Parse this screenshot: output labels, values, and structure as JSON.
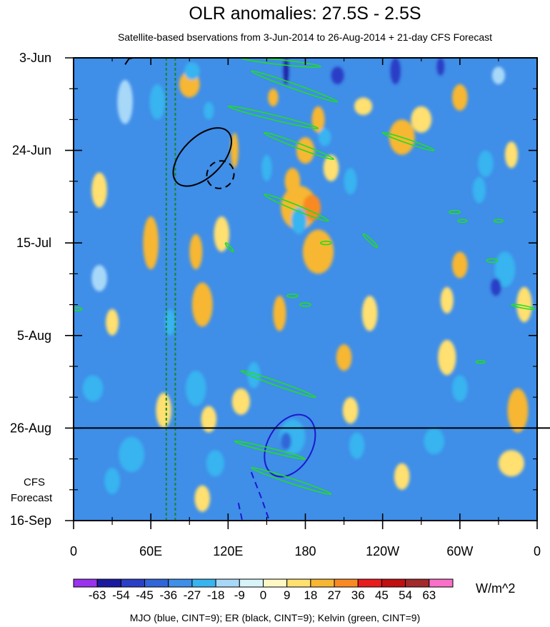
{
  "chart_data": {
    "type": "heatmap",
    "title": "OLR anomalies: 27.5S - 2.5S",
    "subtitle": "Satellite-based bservations from 3-Jun-2014 to 26-Aug-2014 + 21-day CFS Forecast",
    "xlabel": "",
    "ylabel": "",
    "x_domain": [
      0,
      360
    ],
    "x_ticks": [
      {
        "lon": 0,
        "label": "0"
      },
      {
        "lon": 60,
        "label": "60E"
      },
      {
        "lon": 120,
        "label": "120E"
      },
      {
        "lon": 180,
        "label": "180"
      },
      {
        "lon": 240,
        "label": "120W"
      },
      {
        "lon": 300,
        "label": "60W"
      },
      {
        "lon": 360,
        "label": "0"
      }
    ],
    "y_domain_days": [
      0,
      105
    ],
    "y_ticks": [
      {
        "day": 0,
        "label": "3-Jun"
      },
      {
        "day": 21,
        "label": "24-Jun"
      },
      {
        "day": 42,
        "label": "15-Jul"
      },
      {
        "day": 63,
        "label": "5-Aug"
      },
      {
        "day": 84,
        "label": "26-Aug"
      },
      {
        "day": 105,
        "label": "16-Sep"
      }
    ],
    "forecast_start_day": 84,
    "forecast_label": [
      "CFS",
      "Forecast"
    ],
    "reference_lines_lon": [
      72,
      79
    ],
    "colorbar": {
      "levels": [
        "-63",
        "-54",
        "-45",
        "-36",
        "-27",
        "-18",
        "-9",
        "0",
        "9",
        "18",
        "27",
        "36",
        "45",
        "54",
        "63"
      ],
      "colors": [
        "#9933ee",
        "#1a1aa0",
        "#2b3ec6",
        "#3166d8",
        "#3f8ee8",
        "#38b4f0",
        "#a8d8f8",
        "#d8f4fa",
        "#fff8c4",
        "#ffe070",
        "#f7b733",
        "#f98a22",
        "#e81c1c",
        "#c01010",
        "#a22a2a",
        "#f870c8"
      ],
      "units": "W/m^2"
    },
    "footer": "MJO (blue, CINT=9); ER (black, CINT=9); Kelvin (green, CINT=9)",
    "anomaly_field": {
      "background": 4,
      "blobs": [
        {
          "lon": 165,
          "day": 3,
          "a": 2,
          "b": 3,
          "bin": 1
        },
        {
          "lon": 205,
          "day": 4,
          "a": 5,
          "b": 2,
          "bin": 2
        },
        {
          "lon": 250,
          "day": 3,
          "a": 4,
          "b": 3,
          "bin": 2
        },
        {
          "lon": 285,
          "day": 2,
          "a": 3,
          "b": 2,
          "bin": 2
        },
        {
          "lon": 330,
          "day": 4,
          "a": 5,
          "b": 2,
          "bin": 6
        },
        {
          "lon": 40,
          "day": 10,
          "a": 6,
          "b": 5,
          "bin": 6
        },
        {
          "lon": 90,
          "day": 6,
          "a": 8,
          "b": 3,
          "bin": 10
        },
        {
          "lon": 155,
          "day": 9,
          "a": 4,
          "b": 2,
          "bin": 10
        },
        {
          "lon": 190,
          "day": 14,
          "a": 5,
          "b": 3,
          "bin": 10
        },
        {
          "lon": 225,
          "day": 11,
          "a": 7,
          "b": 2,
          "bin": 9
        },
        {
          "lon": 300,
          "day": 9,
          "a": 6,
          "b": 3,
          "bin": 10
        },
        {
          "lon": 270,
          "day": 14,
          "a": 8,
          "b": 3,
          "bin": 9
        },
        {
          "lon": 180,
          "day": 21,
          "a": 7,
          "b": 3,
          "bin": 10
        },
        {
          "lon": 200,
          "day": 25,
          "a": 6,
          "b": 3,
          "bin": 9
        },
        {
          "lon": 170,
          "day": 28,
          "a": 6,
          "b": 3,
          "bin": 10
        },
        {
          "lon": 175,
          "day": 34,
          "a": 14,
          "b": 5,
          "bin": 10
        },
        {
          "lon": 185,
          "day": 34,
          "a": 7,
          "b": 3,
          "bin": 11
        },
        {
          "lon": 190,
          "day": 44,
          "a": 12,
          "b": 5,
          "bin": 10
        },
        {
          "lon": 255,
          "day": 18,
          "a": 10,
          "b": 4,
          "bin": 10
        },
        {
          "lon": 125,
          "day": 21,
          "a": 3,
          "b": 4,
          "bin": 10
        },
        {
          "lon": 60,
          "day": 42,
          "a": 6,
          "b": 6,
          "bin": 10
        },
        {
          "lon": 95,
          "day": 44,
          "a": 5,
          "b": 4,
          "bin": 10
        },
        {
          "lon": 100,
          "day": 56,
          "a": 8,
          "b": 5,
          "bin": 10
        },
        {
          "lon": 115,
          "day": 40,
          "a": 6,
          "b": 4,
          "bin": 9
        },
        {
          "lon": 160,
          "day": 58,
          "a": 5,
          "b": 4,
          "bin": 10
        },
        {
          "lon": 230,
          "day": 58,
          "a": 6,
          "b": 4,
          "bin": 9
        },
        {
          "lon": 290,
          "day": 55,
          "a": 5,
          "b": 3,
          "bin": 9
        },
        {
          "lon": 210,
          "day": 68,
          "a": 6,
          "b": 3,
          "bin": 10
        },
        {
          "lon": 290,
          "day": 68,
          "a": 7,
          "b": 4,
          "bin": 9
        },
        {
          "lon": 300,
          "day": 47,
          "a": 6,
          "b": 3,
          "bin": 10
        },
        {
          "lon": 345,
          "day": 80,
          "a": 8,
          "b": 5,
          "bin": 10
        },
        {
          "lon": 340,
          "day": 92,
          "a": 10,
          "b": 3,
          "bin": 9
        },
        {
          "lon": 215,
          "day": 80,
          "a": 6,
          "b": 3,
          "bin": 9
        },
        {
          "lon": 255,
          "day": 95,
          "a": 6,
          "b": 3,
          "bin": 9
        },
        {
          "lon": 70,
          "day": 80,
          "a": 6,
          "b": 4,
          "bin": 9
        },
        {
          "lon": 105,
          "day": 82,
          "a": 6,
          "b": 3,
          "bin": 9
        },
        {
          "lon": 130,
          "day": 78,
          "a": 7,
          "b": 3,
          "bin": 9
        },
        {
          "lon": 100,
          "day": 100,
          "a": 6,
          "b": 3,
          "bin": 9
        },
        {
          "lon": 20,
          "day": 30,
          "a": 6,
          "b": 4,
          "bin": 9
        },
        {
          "lon": 340,
          "day": 22,
          "a": 5,
          "b": 3,
          "bin": 9
        },
        {
          "lon": 350,
          "day": 56,
          "a": 6,
          "b": 4,
          "bin": 9
        },
        {
          "lon": 30,
          "day": 60,
          "a": 5,
          "b": 3,
          "bin": 9
        },
        {
          "lon": 65,
          "day": 10,
          "a": 6,
          "b": 4,
          "bin": 5
        },
        {
          "lon": 92,
          "day": 3,
          "a": 6,
          "b": 2,
          "bin": 5
        },
        {
          "lon": 105,
          "day": 12,
          "a": 4,
          "b": 2,
          "bin": 5
        },
        {
          "lon": 150,
          "day": 25,
          "a": 4,
          "b": 3,
          "bin": 5
        },
        {
          "lon": 175,
          "day": 37,
          "a": 6,
          "b": 3,
          "bin": 5
        },
        {
          "lon": 195,
          "day": 18,
          "a": 5,
          "b": 2,
          "bin": 5
        },
        {
          "lon": 215,
          "day": 28,
          "a": 5,
          "b": 3,
          "bin": 5
        },
        {
          "lon": 285,
          "day": 14,
          "a": 4,
          "b": 2,
          "bin": 4
        },
        {
          "lon": 320,
          "day": 24,
          "a": 6,
          "b": 3,
          "bin": 5
        },
        {
          "lon": 335,
          "day": 48,
          "a": 8,
          "b": 4,
          "bin": 5
        },
        {
          "lon": 328,
          "day": 52,
          "a": 4,
          "b": 2,
          "bin": 2
        },
        {
          "lon": 315,
          "day": 30,
          "a": 5,
          "b": 3,
          "bin": 5
        },
        {
          "lon": 20,
          "day": 50,
          "a": 6,
          "b": 3,
          "bin": 6
        },
        {
          "lon": 15,
          "day": 75,
          "a": 8,
          "b": 3,
          "bin": 5
        },
        {
          "lon": 45,
          "day": 90,
          "a": 10,
          "b": 4,
          "bin": 5
        },
        {
          "lon": 95,
          "day": 75,
          "a": 8,
          "b": 4,
          "bin": 5
        },
        {
          "lon": 140,
          "day": 72,
          "a": 5,
          "b": 3,
          "bin": 5
        },
        {
          "lon": 170,
          "day": 86,
          "a": 10,
          "b": 4,
          "bin": 5
        },
        {
          "lon": 165,
          "day": 87,
          "a": 4,
          "b": 2,
          "bin": 3
        },
        {
          "lon": 220,
          "day": 88,
          "a": 6,
          "b": 3,
          "bin": 5
        },
        {
          "lon": 280,
          "day": 87,
          "a": 8,
          "b": 3,
          "bin": 5
        },
        {
          "lon": 300,
          "day": 75,
          "a": 6,
          "b": 3,
          "bin": 5
        },
        {
          "lon": 110,
          "day": 92,
          "a": 7,
          "b": 3,
          "bin": 5
        },
        {
          "lon": 30,
          "day": 96,
          "a": 6,
          "b": 3,
          "bin": 5
        },
        {
          "lon": 75,
          "day": 60,
          "a": 4,
          "b": 3,
          "bin": 5
        }
      ]
    },
    "contours": [
      {
        "wave": "MJO",
        "color": "#1a1acc",
        "sign": "positive",
        "shape": "ellipse",
        "lon": 168,
        "day": 88,
        "rx": 26,
        "ry": 5,
        "angle_deg": -60
      },
      {
        "wave": "MJO",
        "color": "#1a1acc",
        "sign": "negative",
        "shape": "path",
        "points": [
          [
            138,
            94
          ],
          [
            146,
            100
          ],
          [
            152,
            105
          ]
        ]
      },
      {
        "wave": "MJO",
        "color": "#1a1acc",
        "sign": "negative",
        "shape": "path",
        "points": [
          [
            128,
            101
          ],
          [
            131,
            105
          ]
        ]
      },
      {
        "wave": "ER",
        "color": "#000000",
        "sign": "positive",
        "shape": "ellipse",
        "lon": 100,
        "day": 22.5,
        "rx": 28,
        "ry": 4.5,
        "angle_deg": -45
      },
      {
        "wave": "ER",
        "color": "#000000",
        "sign": "negative",
        "shape": "ellipse",
        "lon": 114,
        "day": 26.5,
        "rx": 11,
        "ry": 3,
        "angle_deg": -50
      },
      {
        "wave": "ER",
        "color": "#000000",
        "sign": "positive",
        "shape": "path",
        "points": [
          [
            40,
            1.5
          ],
          [
            43,
            0.2
          ],
          [
            46,
            0
          ]
        ]
      },
      {
        "wave": "Kelvin",
        "color": "#22dd22",
        "sign": "positive",
        "shape": "band",
        "from": [
          130,
          0
        ],
        "to": [
          192,
          2
        ],
        "width": 1.1
      },
      {
        "wave": "Kelvin",
        "color": "#22dd22",
        "sign": "positive",
        "shape": "band",
        "from": [
          138,
          3
        ],
        "to": [
          205,
          10
        ],
        "width": 1.1
      },
      {
        "wave": "Kelvin",
        "color": "#22dd22",
        "sign": "positive",
        "shape": "band",
        "from": [
          120,
          11
        ],
        "to": [
          190,
          16
        ],
        "width": 1.1
      },
      {
        "wave": "Kelvin",
        "color": "#22dd22",
        "sign": "positive",
        "shape": "band",
        "from": [
          148,
          17
        ],
        "to": [
          202,
          23
        ],
        "width": 1.1
      },
      {
        "wave": "Kelvin",
        "color": "#22dd22",
        "sign": "positive",
        "shape": "band",
        "from": [
          148,
          31
        ],
        "to": [
          198,
          37
        ],
        "width": 1.2
      },
      {
        "wave": "Kelvin",
        "color": "#22dd22",
        "sign": "positive",
        "shape": "band",
        "from": [
          240,
          17
        ],
        "to": [
          280,
          21
        ],
        "width": 0.9
      },
      {
        "wave": "Kelvin",
        "color": "#22dd22",
        "sign": "positive",
        "shape": "band",
        "from": [
          225,
          40
        ],
        "to": [
          236,
          43
        ],
        "width": 0.7
      },
      {
        "wave": "Kelvin",
        "color": "#22dd22",
        "sign": "positive",
        "shape": "band",
        "from": [
          118,
          42
        ],
        "to": [
          124,
          44
        ],
        "width": 0.6
      },
      {
        "wave": "Kelvin",
        "color": "#22dd22",
        "sign": "positive",
        "shape": "band",
        "from": [
          130,
          71
        ],
        "to": [
          188,
          77
        ],
        "width": 1.0
      },
      {
        "wave": "Kelvin",
        "color": "#22dd22",
        "sign": "positive",
        "shape": "band",
        "from": [
          125,
          87
        ],
        "to": [
          180,
          91
        ],
        "width": 0.9
      },
      {
        "wave": "Kelvin",
        "color": "#22dd22",
        "sign": "positive",
        "shape": "band",
        "from": [
          138,
          93
        ],
        "to": [
          200,
          99
        ],
        "width": 1.1
      },
      {
        "wave": "Kelvin",
        "color": "#22dd22",
        "sign": "positive",
        "shape": "band",
        "from": [
          340,
          56
        ],
        "to": [
          358,
          57
        ],
        "width": 0.6
      },
      {
        "wave": "Kelvin",
        "color": "#22dd22",
        "sign": "positive",
        "shape": "spot",
        "lon": 3,
        "day": 57,
        "r": 2.5
      },
      {
        "wave": "Kelvin",
        "color": "#22dd22",
        "sign": "positive",
        "shape": "spot",
        "lon": 170,
        "day": 54,
        "r": 3
      },
      {
        "wave": "Kelvin",
        "color": "#22dd22",
        "sign": "positive",
        "shape": "spot",
        "lon": 180,
        "day": 56,
        "r": 3
      },
      {
        "wave": "Kelvin",
        "color": "#22dd22",
        "sign": "positive",
        "shape": "spot",
        "lon": 196,
        "day": 42,
        "r": 3
      },
      {
        "wave": "Kelvin",
        "color": "#22dd22",
        "sign": "positive",
        "shape": "spot",
        "lon": 296,
        "day": 35,
        "r": 3
      },
      {
        "wave": "Kelvin",
        "color": "#22dd22",
        "sign": "positive",
        "shape": "spot",
        "lon": 325,
        "day": 46,
        "r": 3
      },
      {
        "wave": "Kelvin",
        "color": "#22dd22",
        "sign": "positive",
        "shape": "spot",
        "lon": 316,
        "day": 69,
        "r": 2.5
      },
      {
        "wave": "Kelvin",
        "color": "#22dd22",
        "sign": "positive",
        "shape": "spot",
        "lon": 302,
        "day": 37,
        "r": 2.5
      },
      {
        "wave": "Kelvin",
        "color": "#22dd22",
        "sign": "positive",
        "shape": "spot",
        "lon": 330,
        "day": 37,
        "r": 2.5
      }
    ]
  }
}
